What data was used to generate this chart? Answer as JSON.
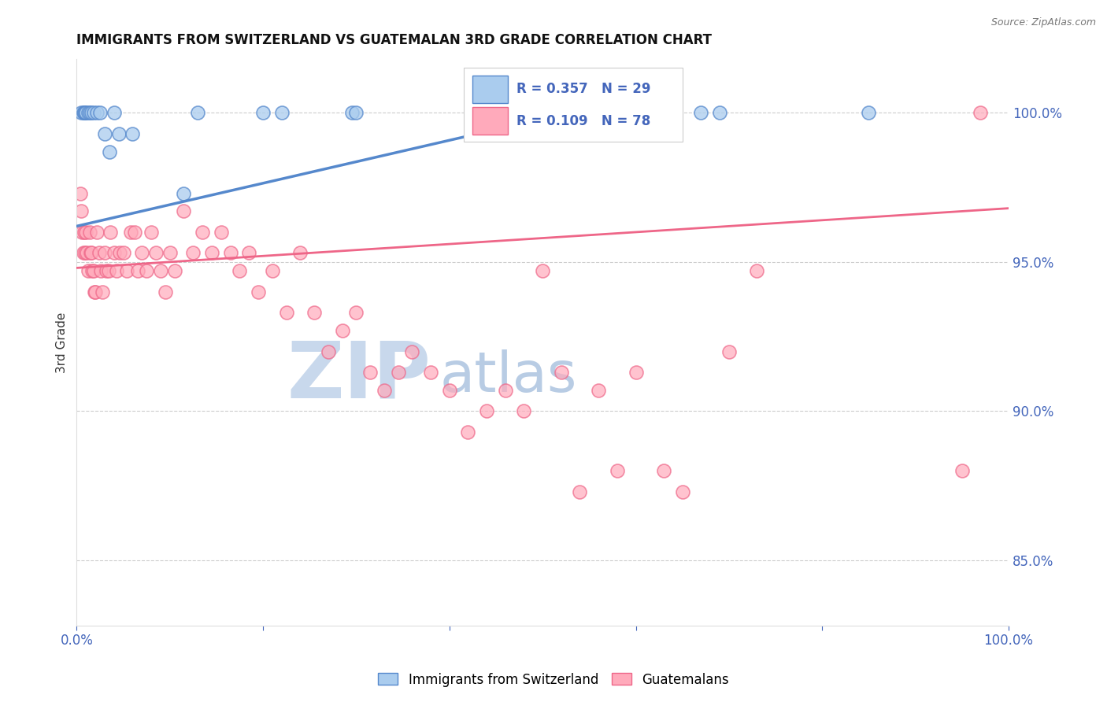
{
  "title": "IMMIGRANTS FROM SWITZERLAND VS GUATEMALAN 3RD GRADE CORRELATION CHART",
  "source": "Source: ZipAtlas.com",
  "ylabel": "3rd Grade",
  "xlabel": "",
  "xmin": 0.0,
  "xmax": 1.0,
  "ymin": 0.828,
  "ymax": 1.018,
  "yticks": [
    0.85,
    0.9,
    0.95,
    1.0
  ],
  "ytick_labels": [
    "85.0%",
    "90.0%",
    "95.0%",
    "100.0%"
  ],
  "xticks": [
    0.0,
    0.2,
    0.4,
    0.6,
    0.8,
    1.0
  ],
  "xtick_labels": [
    "0.0%",
    "",
    "",
    "",
    "",
    "100.0%"
  ],
  "blue_R": 0.357,
  "blue_N": 29,
  "pink_R": 0.109,
  "pink_N": 78,
  "blue_label": "Immigrants from Switzerland",
  "pink_label": "Guatemalans",
  "blue_color": "#aaccee",
  "blue_edge": "#5588cc",
  "pink_color": "#ffaabb",
  "pink_edge": "#ee6688",
  "blue_scatter_x": [
    0.005,
    0.007,
    0.008,
    0.009,
    0.01,
    0.012,
    0.014,
    0.016,
    0.018,
    0.022,
    0.025,
    0.03,
    0.035,
    0.04,
    0.045,
    0.06,
    0.115,
    0.13,
    0.2,
    0.22,
    0.295,
    0.3,
    0.435,
    0.445,
    0.5,
    0.6,
    0.67,
    0.69,
    0.85
  ],
  "blue_scatter_y": [
    1.0,
    1.0,
    1.0,
    1.0,
    1.0,
    1.0,
    1.0,
    1.0,
    1.0,
    1.0,
    1.0,
    0.993,
    0.987,
    1.0,
    0.993,
    0.993,
    0.973,
    1.0,
    1.0,
    1.0,
    1.0,
    1.0,
    1.0,
    1.0,
    1.0,
    1.0,
    1.0,
    1.0,
    1.0
  ],
  "pink_scatter_x": [
    0.004,
    0.005,
    0.006,
    0.007,
    0.008,
    0.009,
    0.01,
    0.011,
    0.012,
    0.014,
    0.015,
    0.016,
    0.017,
    0.018,
    0.019,
    0.02,
    0.022,
    0.024,
    0.026,
    0.028,
    0.03,
    0.032,
    0.034,
    0.036,
    0.04,
    0.043,
    0.046,
    0.05,
    0.054,
    0.058,
    0.062,
    0.066,
    0.07,
    0.075,
    0.08,
    0.085,
    0.09,
    0.095,
    0.1,
    0.105,
    0.115,
    0.125,
    0.135,
    0.145,
    0.155,
    0.165,
    0.175,
    0.185,
    0.195,
    0.21,
    0.225,
    0.24,
    0.255,
    0.27,
    0.285,
    0.3,
    0.315,
    0.33,
    0.345,
    0.36,
    0.38,
    0.4,
    0.42,
    0.44,
    0.46,
    0.48,
    0.5,
    0.52,
    0.54,
    0.56,
    0.58,
    0.6,
    0.63,
    0.65,
    0.7,
    0.73,
    0.95,
    0.97
  ],
  "pink_scatter_y": [
    0.973,
    0.967,
    0.96,
    0.953,
    0.96,
    0.953,
    0.96,
    0.953,
    0.947,
    0.96,
    0.953,
    0.953,
    0.947,
    0.947,
    0.94,
    0.94,
    0.96,
    0.953,
    0.947,
    0.94,
    0.953,
    0.947,
    0.947,
    0.96,
    0.953,
    0.947,
    0.953,
    0.953,
    0.947,
    0.96,
    0.96,
    0.947,
    0.953,
    0.947,
    0.96,
    0.953,
    0.947,
    0.94,
    0.953,
    0.947,
    0.967,
    0.953,
    0.96,
    0.953,
    0.96,
    0.953,
    0.947,
    0.953,
    0.94,
    0.947,
    0.933,
    0.953,
    0.933,
    0.92,
    0.927,
    0.933,
    0.913,
    0.907,
    0.913,
    0.92,
    0.913,
    0.907,
    0.893,
    0.9,
    0.907,
    0.9,
    0.947,
    0.913,
    0.873,
    0.907,
    0.88,
    0.913,
    0.88,
    0.873,
    0.92,
    0.947,
    0.88,
    1.0
  ],
  "blue_line_x": [
    0.0,
    0.5
  ],
  "blue_line_y": [
    0.962,
    0.998
  ],
  "pink_line_x": [
    0.0,
    1.0
  ],
  "pink_line_y": [
    0.948,
    0.968
  ],
  "watermark_zip": "ZIP",
  "watermark_atlas": "atlas",
  "watermark_color_zip": "#c8d8ec",
  "watermark_color_atlas": "#b8cce4",
  "legend_R_blue": "R = 0.357",
  "legend_N_blue": "N = 29",
  "legend_R_pink": "R = 0.109",
  "legend_N_pink": "N = 78",
  "title_fontsize": 12,
  "axis_label_color": "#333333",
  "tick_color": "#4466bb",
  "background_color": "#ffffff",
  "grid_color": "#cccccc"
}
